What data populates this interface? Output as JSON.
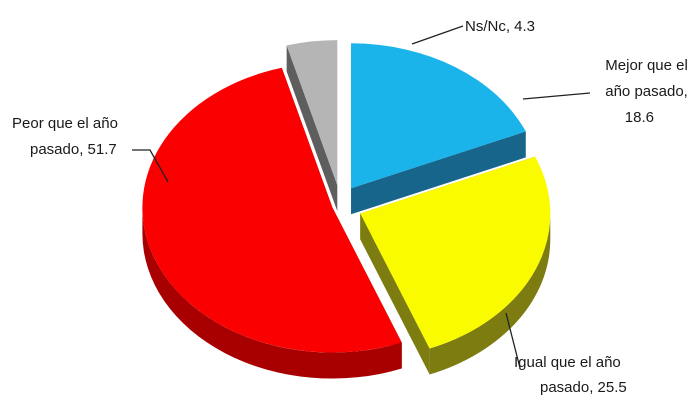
{
  "chart_data": {
    "type": "pie",
    "three_d": true,
    "exploded": true,
    "slices": [
      {
        "label_lines": [
          "Mejor que el",
          "año pasado,",
          "18.6"
        ],
        "value": 18.6,
        "color": "#1ab4ea",
        "side_color": "#17658a"
      },
      {
        "label_lines": [
          "Igual que el año",
          "pasado, 25.5"
        ],
        "value": 25.5,
        "color": "#fbfb00",
        "side_color": "#7c7c10"
      },
      {
        "label_lines": [
          "Peor que el año",
          "pasado, 51.7"
        ],
        "value": 51.7,
        "color": "#fb0000",
        "side_color": "#a80000"
      },
      {
        "label_lines": [
          "Ns/Nc, 4.3"
        ],
        "value": 4.3,
        "color": "#b5b5b5",
        "side_color": "#5e5e5e"
      }
    ]
  }
}
